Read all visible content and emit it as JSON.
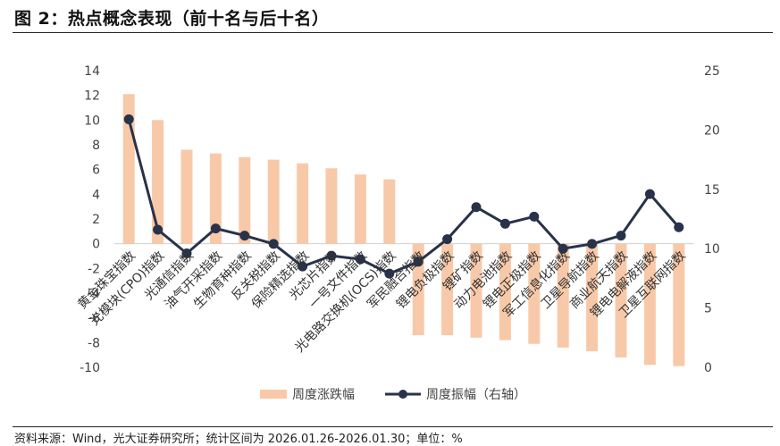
{
  "title": "图 2：热点概念表现（前十名与后十名）",
  "source": "资料来源：Wind，光大证券研究所；统计区间为 2026.01.26-2026.01.30；单位：%",
  "colors": {
    "bar": "#f8c9a8",
    "line": "#28324a"
  },
  "chart_data": {
    "type": "bar+line",
    "categories": [
      "黄金珠宝指数",
      "光模块(CPO)指数",
      "光通信指数",
      "油气开采指数",
      "生物育种指数",
      "反关税指数",
      "保险精选指数",
      "光芯片指数",
      "一号文件指数",
      "光电路交换机(OCS)指数",
      "军民融合指数",
      "锂电负极指数",
      "锂矿指数",
      "动力电池指数",
      "锂电正极指数",
      "军工信息化指数",
      "卫星导航指数",
      "商业航天指数",
      "锂电电解液指数",
      "卫星互联网指数"
    ],
    "series": [
      {
        "name": "周度涨跌幅",
        "type": "bar",
        "axis": "left",
        "values": [
          12.1,
          10.0,
          7.6,
          7.3,
          7.0,
          6.8,
          6.5,
          6.1,
          5.6,
          5.2,
          -7.4,
          -7.4,
          -7.6,
          -7.8,
          -8.1,
          -8.4,
          -8.7,
          -9.2,
          -9.8,
          -9.9
        ]
      },
      {
        "name": "周度振幅（右轴）",
        "type": "line",
        "axis": "right",
        "values": [
          20.9,
          11.6,
          9.6,
          11.7,
          11.1,
          10.4,
          8.5,
          9.4,
          9.1,
          7.9,
          8.9,
          10.8,
          13.5,
          12.1,
          12.7,
          10.0,
          10.4,
          11.1,
          14.6,
          11.8
        ]
      }
    ],
    "yleft": {
      "min": -10,
      "max": 14,
      "ticks": [
        14,
        12,
        10,
        8,
        6,
        4,
        2,
        0,
        -2,
        -4,
        -6,
        -8,
        -10
      ]
    },
    "yright": {
      "min": 0,
      "max": 25,
      "ticks": [
        25,
        20,
        15,
        10,
        5,
        0
      ]
    },
    "legend_position": "bottom",
    "grid": false
  }
}
